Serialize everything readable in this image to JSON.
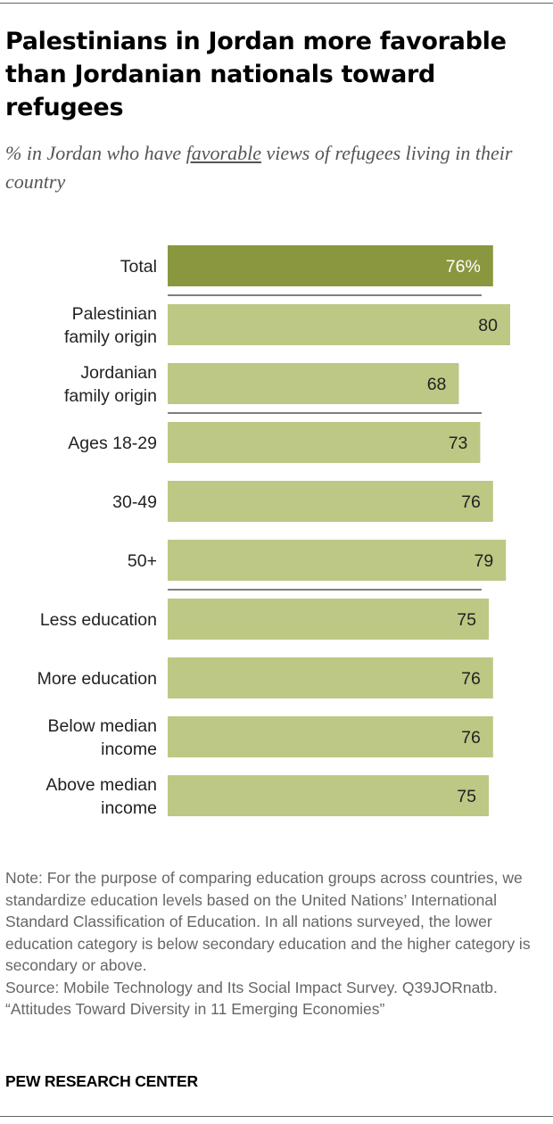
{
  "title": "Palestinians in Jordan more favorable than Jordanian nationals toward refugees",
  "subtitle": {
    "before": "% in Jordan who have ",
    "emphasis": "favorable",
    "after": " views of refugees living in their country"
  },
  "colors": {
    "total_bar": "#8a973f",
    "group_bar": "#bcc884",
    "separator": "#333333",
    "total_value_text": "#ffffff",
    "group_value_text": "#222222"
  },
  "chart_data": {
    "type": "bar",
    "orientation": "horizontal",
    "categories": [
      [
        "Total"
      ],
      [
        "Palestinian",
        "family origin"
      ],
      [
        "Jordanian",
        "family origin"
      ],
      [
        "Ages 18-29"
      ],
      [
        "30-49"
      ],
      [
        "50+"
      ],
      [
        "Less education"
      ],
      [
        "More education"
      ],
      [
        "Below median",
        "income"
      ],
      [
        "Above median",
        "income"
      ]
    ],
    "values": [
      76,
      80,
      68,
      73,
      76,
      79,
      75,
      76,
      76,
      75
    ],
    "value_labels": [
      "76%",
      "80",
      "68",
      "73",
      "76",
      "79",
      "75",
      "76",
      "76",
      "75"
    ],
    "highlight_index": 0,
    "group_separators_after": [
      0,
      2,
      5
    ],
    "unit": "%",
    "xlim": [
      0,
      100
    ]
  },
  "notes": [
    "Note: For the purpose of comparing education groups across countries, we standardize education levels based on the United Nations’ International Standard Classification of Education. In all nations surveyed, the lower education category is below secondary education and the higher category is secondary or above.",
    "Source: Mobile Technology and Its Social Impact Survey. Q39JORnatb.",
    "“Attitudes Toward Diversity in 11 Emerging Economies”"
  ],
  "brand": "PEW RESEARCH CENTER"
}
